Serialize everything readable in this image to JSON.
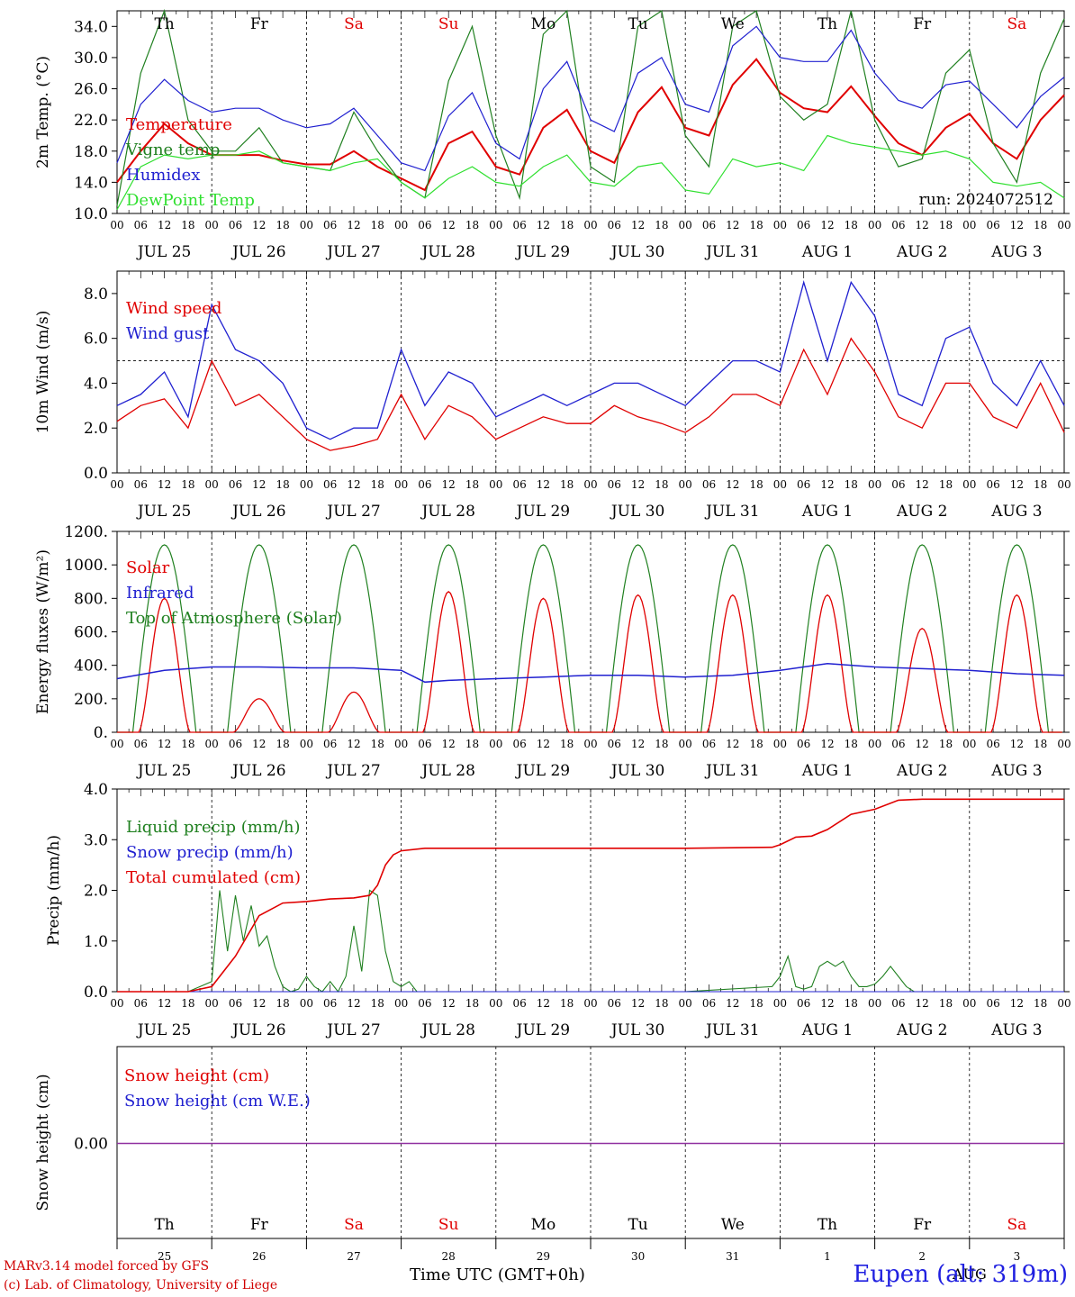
{
  "chart_data": [
    {
      "type": "line",
      "ylabel": "2m Temp. (°C)",
      "ylim": [
        10,
        36
      ],
      "yticks": [
        "10.0",
        "14.0",
        "18.0",
        "22.0",
        "26.0",
        "30.0",
        "34.0"
      ],
      "annotation": "run: 2024072512",
      "series": [
        {
          "name": "Temperature",
          "color": "#e00000",
          "x": [
            0,
            6,
            12,
            18,
            24,
            30,
            36,
            42,
            48,
            54,
            60,
            66,
            72,
            78,
            84,
            90,
            96,
            102,
            108,
            114,
            120,
            126,
            132,
            138,
            144,
            150,
            156,
            162,
            168,
            174,
            180,
            186,
            192,
            198,
            204,
            210,
            216,
            222,
            228,
            234,
            240
          ],
          "y": [
            14,
            18,
            21.5,
            19,
            17.5,
            17.5,
            17.5,
            16.8,
            16.3,
            16.3,
            18,
            16,
            14.5,
            13,
            19,
            20.5,
            16,
            15,
            21,
            23.3,
            18,
            16.5,
            23,
            26.2,
            21,
            20,
            26.5,
            29.8,
            25.5,
            23.5,
            23,
            26.3,
            22.5,
            19,
            17.5,
            21,
            22.8,
            19,
            17,
            22,
            25.2
          ]
        },
        {
          "name": "Vigne temp",
          "color": "#208020",
          "x": [
            0,
            6,
            12,
            18,
            24,
            30,
            36,
            42,
            48,
            54,
            60,
            66,
            72,
            78,
            84,
            90,
            96,
            102,
            108,
            114,
            120,
            126,
            132,
            138,
            144,
            150,
            156,
            162,
            168,
            174,
            180,
            186,
            192,
            198,
            204,
            210,
            216,
            222,
            228,
            234,
            240
          ],
          "y": [
            11,
            28,
            36,
            22,
            18,
            18,
            21,
            16.5,
            16,
            15.5,
            23,
            18,
            14,
            12,
            27,
            34,
            20,
            12,
            33,
            36,
            16,
            14,
            34,
            38,
            20,
            16,
            34,
            39,
            25,
            22,
            24,
            38,
            22,
            16,
            17,
            28,
            31,
            19,
            14,
            28,
            35
          ]
        },
        {
          "name": "Humidex",
          "color": "#2020d0",
          "x": [
            0,
            6,
            12,
            18,
            24,
            30,
            36,
            42,
            48,
            54,
            60,
            66,
            72,
            78,
            84,
            90,
            96,
            102,
            108,
            114,
            120,
            126,
            132,
            138,
            144,
            150,
            156,
            162,
            168,
            174,
            180,
            186,
            192,
            198,
            204,
            210,
            216,
            222,
            228,
            234,
            240
          ],
          "y": [
            16.5,
            24,
            27.2,
            24.5,
            23,
            23.5,
            23.5,
            22,
            21,
            21.5,
            23.5,
            20,
            16.5,
            15.5,
            22.5,
            25.5,
            19,
            17,
            26,
            29.5,
            22,
            20.5,
            28,
            30,
            24,
            23,
            31.5,
            34,
            30,
            29.5,
            29.5,
            33.5,
            28,
            24.5,
            23.5,
            26.5,
            27,
            24,
            21,
            25,
            27.5
          ]
        },
        {
          "name": "DewPoint Temp",
          "color": "#30e030",
          "x": [
            0,
            6,
            12,
            18,
            24,
            30,
            36,
            42,
            48,
            54,
            60,
            66,
            72,
            78,
            84,
            90,
            96,
            102,
            108,
            114,
            120,
            126,
            132,
            138,
            144,
            150,
            156,
            162,
            168,
            174,
            180,
            186,
            192,
            198,
            204,
            210,
            216,
            222,
            228,
            234,
            240
          ],
          "y": [
            10.5,
            16,
            17.5,
            17,
            17.5,
            17.5,
            18,
            16.5,
            16,
            15.5,
            16.5,
            17,
            14,
            12,
            14.5,
            16,
            14,
            13.5,
            16,
            17.5,
            14,
            13.5,
            16,
            16.5,
            13,
            12.5,
            17,
            16,
            16.5,
            15.5,
            20,
            19,
            18.5,
            18,
            17.5,
            18,
            17,
            14,
            13.5,
            14,
            12
          ]
        }
      ],
      "x_day_labels": [
        "Th",
        "Fr",
        "Sa",
        "Su",
        "Mo",
        "Tu",
        "We",
        "Th",
        "Fr",
        "Sa"
      ],
      "x_date_labels": [
        "JUL 25",
        "JUL 26",
        "JUL 27",
        "JUL 28",
        "JUL 29",
        "JUL 30",
        "JUL 31",
        "AUG  1",
        "AUG  2",
        "AUG  3"
      ],
      "x_hour_labels": [
        "00",
        "06",
        "12",
        "18"
      ],
      "grid": "vertical dashed at 00 UTC",
      "legend_position": "left"
    },
    {
      "type": "line",
      "ylabel": "10m Wind (m/s)",
      "ylim": [
        0,
        9
      ],
      "yticks": [
        "0.0",
        "2.0",
        "4.0",
        "6.0",
        "8.0"
      ],
      "reference_line": 5,
      "series": [
        {
          "name": "Wind speed",
          "color": "#e00000",
          "x": [
            0,
            6,
            12,
            18,
            24,
            30,
            36,
            42,
            48,
            54,
            60,
            66,
            72,
            78,
            84,
            90,
            96,
            102,
            108,
            114,
            120,
            126,
            132,
            138,
            144,
            150,
            156,
            162,
            168,
            174,
            180,
            186,
            192,
            198,
            204,
            210,
            216,
            222,
            228,
            234,
            240
          ],
          "y": [
            2.3,
            3,
            3.3,
            2,
            5,
            3,
            3.5,
            2.5,
            1.5,
            1,
            1.2,
            1.5,
            3.5,
            1.5,
            3,
            2.5,
            1.5,
            2,
            2.5,
            2.2,
            2.2,
            3,
            2.5,
            2.2,
            1.8,
            2.5,
            3.5,
            3.5,
            3,
            5.5,
            3.5,
            6,
            4.5,
            2.5,
            2,
            4,
            4,
            2.5,
            2,
            4,
            1.8
          ]
        },
        {
          "name": "Wind gust",
          "color": "#2020d0",
          "x": [
            0,
            6,
            12,
            18,
            24,
            30,
            36,
            42,
            48,
            54,
            60,
            66,
            72,
            78,
            84,
            90,
            96,
            102,
            108,
            114,
            120,
            126,
            132,
            138,
            144,
            150,
            156,
            162,
            168,
            174,
            180,
            186,
            192,
            198,
            204,
            210,
            216,
            222,
            228,
            234,
            240
          ],
          "y": [
            3,
            3.5,
            4.5,
            2.5,
            7.5,
            5.5,
            5,
            4,
            2,
            1.5,
            2,
            2,
            5.5,
            3,
            4.5,
            4,
            2.5,
            3,
            3.5,
            3,
            3.5,
            4,
            4,
            3.5,
            3,
            4,
            5,
            5,
            4.5,
            8.5,
            5,
            8.5,
            7,
            3.5,
            3,
            6,
            6.5,
            4,
            3,
            5,
            3
          ]
        }
      ],
      "x_date_labels": [
        "JUL 25",
        "JUL 26",
        "JUL 27",
        "JUL 28",
        "JUL 29",
        "JUL 30",
        "JUL 31",
        "AUG  1",
        "AUG  2",
        "AUG  3"
      ],
      "x_hour_labels": [
        "00",
        "06",
        "12",
        "18"
      ],
      "legend_position": "left"
    },
    {
      "type": "line",
      "ylabel": "Energy fluxes (W/m²)",
      "ylim": [
        0,
        1200
      ],
      "yticks": [
        "0.",
        "200.",
        "400.",
        "600.",
        "800.",
        "1000.",
        "1200."
      ],
      "series": [
        {
          "name": "Solar",
          "color": "#e00000",
          "day_peaks": [
            800,
            200,
            240,
            840,
            800,
            820,
            820,
            820,
            620,
            820
          ]
        },
        {
          "name": "Infrared",
          "color": "#2020d0",
          "x": [
            0,
            12,
            24,
            36,
            48,
            60,
            72,
            78,
            84,
            96,
            108,
            120,
            132,
            144,
            156,
            168,
            180,
            192,
            204,
            216,
            228,
            240
          ],
          "y": [
            320,
            370,
            390,
            390,
            385,
            385,
            370,
            300,
            310,
            320,
            330,
            340,
            340,
            330,
            340,
            370,
            410,
            390,
            380,
            370,
            350,
            340
          ]
        },
        {
          "name": "Top of Atmosphere (Solar)",
          "color": "#208020",
          "day_peak": 1120,
          "sunrise_h": 4,
          "sunset_h": 20
        }
      ],
      "x_date_labels": [
        "JUL 25",
        "JUL 26",
        "JUL 27",
        "JUL 28",
        "JUL 29",
        "JUL 30",
        "JUL 31",
        "AUG  1",
        "AUG  2",
        "AUG  3"
      ],
      "x_hour_labels": [
        "00",
        "06",
        "12",
        "18"
      ],
      "legend_position": "left"
    },
    {
      "type": "line",
      "ylabel": "Precip (mm/h)",
      "ylim": [
        0,
        4
      ],
      "yticks": [
        "0.0",
        "1.0",
        "2.0",
        "3.0",
        "4.0"
      ],
      "series": [
        {
          "name": "Liquid precip (mm/h)",
          "color": "#208020",
          "x": [
            0,
            18,
            21,
            24,
            26,
            28,
            30,
            32,
            34,
            36,
            38,
            40,
            42,
            44,
            46,
            48,
            50,
            52,
            54,
            56,
            58,
            60,
            62,
            64,
            66,
            68,
            70,
            72,
            74,
            76,
            78,
            80,
            100,
            120,
            144,
            166,
            168,
            170,
            172,
            174,
            176,
            178,
            180,
            182,
            184,
            186,
            188,
            190,
            192,
            194,
            196,
            198,
            200,
            202,
            204,
            240
          ],
          "y": [
            0,
            0,
            0.1,
            0.2,
            2,
            0.8,
            1.9,
            1,
            1.7,
            0.9,
            1.1,
            0.5,
            0.1,
            0,
            0.05,
            0.3,
            0.1,
            0,
            0.2,
            0,
            0.3,
            1.3,
            0.4,
            2,
            1.9,
            0.8,
            0.2,
            0.1,
            0.2,
            0,
            0,
            0,
            0,
            0,
            0,
            0.1,
            0.3,
            0.7,
            0.1,
            0.05,
            0.1,
            0.5,
            0.6,
            0.5,
            0.6,
            0.3,
            0.1,
            0.1,
            0.15,
            0.3,
            0.5,
            0.3,
            0.1,
            0,
            0,
            0
          ]
        },
        {
          "name": "Snow precip (mm/h)",
          "color": "#2020d0",
          "x": [
            0,
            240
          ],
          "y": [
            0,
            0
          ]
        },
        {
          "name": "Total cumulated (cm)",
          "color": "#e00000",
          "x": [
            0,
            18,
            24,
            30,
            36,
            42,
            48,
            54,
            60,
            64,
            66,
            68,
            70,
            72,
            78,
            96,
            120,
            144,
            166,
            168,
            172,
            176,
            180,
            186,
            192,
            198,
            204,
            216,
            240
          ],
          "y": [
            0,
            0,
            0.1,
            0.7,
            1.5,
            1.75,
            1.78,
            1.83,
            1.85,
            1.9,
            2.1,
            2.5,
            2.7,
            2.78,
            2.83,
            2.83,
            2.83,
            2.83,
            2.85,
            2.9,
            3.05,
            3.07,
            3.2,
            3.5,
            3.6,
            3.78,
            3.8,
            3.8,
            3.8
          ]
        }
      ],
      "x_date_labels": [
        "JUL 25",
        "JUL 26",
        "JUL 27",
        "JUL 28",
        "JUL 29",
        "JUL 30",
        "JUL 31",
        "AUG  1",
        "AUG  2",
        "AUG  3"
      ],
      "x_hour_labels": [
        "00",
        "06",
        "12",
        "18"
      ],
      "legend_position": "left"
    },
    {
      "type": "line",
      "ylabel": "Snow height (cm)",
      "yticks": [
        "0.00"
      ],
      "series": [
        {
          "name": "Snow height (cm)",
          "color": "#e00000",
          "x": [
            0,
            240
          ],
          "y": [
            0,
            0
          ]
        },
        {
          "name": "Snow height (cm W.E.)",
          "color": "#2020d0",
          "x": [
            0,
            240
          ],
          "y": [
            0,
            0
          ]
        }
      ],
      "x_day_labels": [
        "Th",
        "Fr",
        "Sa",
        "Su",
        "Mo",
        "Tu",
        "We",
        "Th",
        "Fr",
        "Sa"
      ],
      "x_day_numbers": [
        "25",
        "26",
        "27",
        "28",
        "29",
        "30",
        "31",
        "1",
        "2",
        "3"
      ],
      "xlabel": "Time UTC (GMT+0h)",
      "month_label": "AUG",
      "legend_position": "top-left"
    }
  ],
  "day_colors": {
    "weekday": "#000000",
    "weekend": "#e00000"
  },
  "weekend_days": [
    2,
    3,
    9
  ],
  "footer": {
    "line1": "MARv3.14 model forced by GFS",
    "line2": "(c) Lab. of Climatology, University of Liege",
    "station": "Eupen (alt: 319m)"
  }
}
